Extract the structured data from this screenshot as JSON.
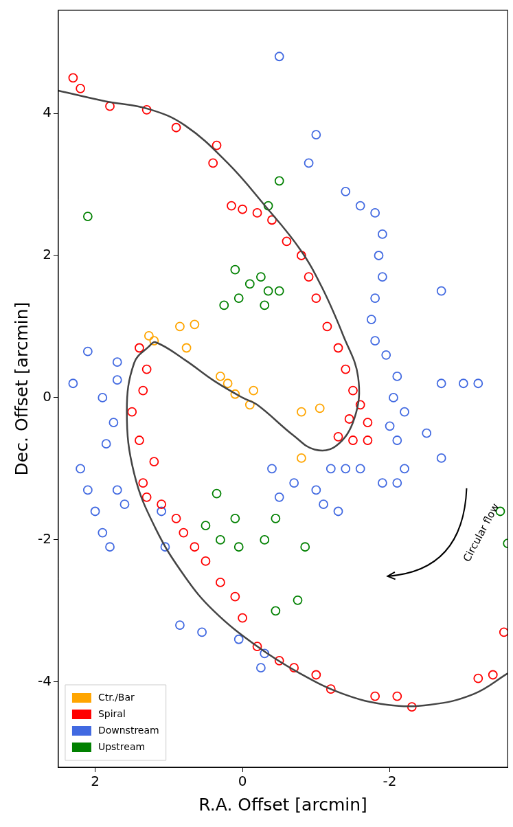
{
  "chart_data": {
    "type": "scatter",
    "xlabel": "R.A. Offset [arcmin]",
    "ylabel": "Dec. Offset [arcmin]",
    "xlim": [
      2.5,
      -3.6
    ],
    "ylim": [
      -5.2,
      5.45
    ],
    "xticks": [
      2,
      0,
      -2
    ],
    "yticks": [
      -4,
      -2,
      0,
      2,
      4
    ],
    "grid": false,
    "legend": "lower left",
    "series": [
      {
        "type": "line",
        "color": "#444444",
        "line_style": "solid",
        "x": [
          2.5,
          1.86,
          1.27,
          0.78,
          0.2,
          -0.29,
          -0.78,
          -1.08,
          -1.37,
          -1.57,
          -1.52,
          -1.27,
          -0.98,
          -0.69,
          -0.2,
          0,
          0.39,
          0.78,
          1.18,
          1.27,
          1.47,
          1.57,
          1.47,
          1.18,
          0.78,
          0.39,
          -0.2,
          -0.78,
          -1.37,
          -1.96,
          -2.55,
          -3.14,
          -3.6
        ],
        "y": [
          4.32,
          4.17,
          4.06,
          3.83,
          3.3,
          2.72,
          2.09,
          1.55,
          0.87,
          0.29,
          -0.29,
          -0.68,
          -0.73,
          -0.53,
          -0.1,
          0,
          0.24,
          0.53,
          0.78,
          0.72,
          0.49,
          -0.19,
          -1.07,
          -1.84,
          -2.52,
          -3.0,
          -3.5,
          -3.88,
          -4.17,
          -4.32,
          -4.32,
          -4.17,
          -3.88
        ]
      },
      {
        "name": "Ctr./Bar",
        "color": "#ffa500",
        "marker": "open_circle",
        "x": [
          0.1,
          0.3,
          -0.1,
          0.2,
          -0.15,
          1.2,
          0.85,
          0.65,
          1.27,
          0.76,
          -0.8,
          -1.05,
          -0.8
        ],
        "y": [
          0.05,
          0.3,
          -0.1,
          0.2,
          0.1,
          0.8,
          1.0,
          1.03,
          0.87,
          0.7,
          -0.2,
          -0.15,
          -0.85
        ]
      },
      {
        "name": "Spiral",
        "color": "#ff0000",
        "marker": "open_circle",
        "x": [
          2.3,
          2.2,
          1.8,
          1.3,
          0.9,
          0.35,
          0.4,
          0.15,
          0.0,
          -0.2,
          -0.4,
          -0.6,
          -0.8,
          -0.9,
          -1.0,
          -1.15,
          -1.3,
          -1.4,
          -1.5,
          -1.6,
          -1.45,
          -1.7,
          -1.3,
          -1.5,
          -1.7,
          1.4,
          1.3,
          1.35,
          1.5,
          1.4,
          1.2,
          1.35,
          1.3,
          1.1,
          0.9,
          0.8,
          0.65,
          0.5,
          0.3,
          0.1,
          0.0,
          -0.2,
          -0.5,
          -0.7,
          -1.0,
          -1.2,
          -1.8,
          -2.1,
          -2.3,
          -3.4,
          -3.55,
          -3.2
        ],
        "y": [
          4.5,
          4.35,
          4.1,
          4.05,
          3.8,
          3.55,
          3.3,
          2.7,
          2.65,
          2.6,
          2.5,
          2.2,
          2.0,
          1.7,
          1.4,
          1.0,
          0.7,
          0.4,
          0.1,
          -0.1,
          -0.3,
          -0.35,
          -0.55,
          -0.6,
          -0.6,
          0.7,
          0.4,
          0.1,
          -0.2,
          -0.6,
          -0.9,
          -1.2,
          -1.4,
          -1.5,
          -1.7,
          -1.9,
          -2.1,
          -2.3,
          -2.6,
          -2.8,
          -3.1,
          -3.5,
          -3.7,
          -3.8,
          -3.9,
          -4.1,
          -4.2,
          -4.2,
          -4.35,
          -3.9,
          -3.3,
          -3.95
        ]
      },
      {
        "name": "Downstream",
        "color": "#4169e1",
        "marker": "open_circle",
        "x": [
          -0.5,
          -1.0,
          -0.9,
          -1.4,
          -1.6,
          -1.8,
          -1.9,
          -1.85,
          -1.9,
          -1.8,
          -2.7,
          -1.75,
          -1.8,
          -1.95,
          -2.1,
          -2.05,
          -2.2,
          -2.0,
          -2.1,
          -2.5,
          -2.7,
          -3.0,
          -3.2,
          -2.7,
          -2.2,
          -1.9,
          -2.1,
          -1.6,
          -1.4,
          -1.2,
          -1.0,
          -1.1,
          -1.3,
          -0.7,
          -0.4,
          -0.5,
          2.3,
          2.1,
          1.7,
          1.7,
          1.9,
          1.75,
          1.85,
          2.2,
          2.1,
          2.0,
          1.9,
          1.8,
          1.7,
          1.6,
          1.1,
          1.05,
          0.85,
          0.55,
          0.05,
          -0.3,
          -0.25
        ],
        "y": [
          4.8,
          3.7,
          3.3,
          2.9,
          2.7,
          2.6,
          2.3,
          2.0,
          1.7,
          1.4,
          1.5,
          1.1,
          0.8,
          0.6,
          0.3,
          0.0,
          -0.2,
          -0.4,
          -0.6,
          -0.5,
          0.2,
          0.2,
          0.2,
          -0.85,
          -1.0,
          -1.2,
          -1.2,
          -1.0,
          -1.0,
          -1.0,
          -1.3,
          -1.5,
          -1.6,
          -1.2,
          -1.0,
          -1.4,
          0.2,
          0.65,
          0.25,
          0.5,
          0.0,
          -0.35,
          -0.65,
          -1.0,
          -1.3,
          -1.6,
          -1.9,
          -2.1,
          -1.3,
          -1.5,
          -1.6,
          -2.1,
          -3.2,
          -3.3,
          -3.4,
          -3.6,
          -3.8
        ]
      },
      {
        "name": "Upstream",
        "color": "#008000",
        "marker": "open_circle",
        "x": [
          2.1,
          -0.5,
          -0.35,
          0.1,
          0.05,
          -0.1,
          -0.25,
          -0.35,
          -0.5,
          -0.3,
          0.25,
          0.35,
          0.1,
          0.5,
          0.3,
          0.05,
          -0.3,
          -0.45,
          -0.85,
          -0.75,
          -0.45,
          -3.5,
          -3.6
        ],
        "y": [
          2.55,
          3.05,
          2.7,
          1.8,
          1.4,
          1.6,
          1.7,
          1.5,
          1.5,
          1.3,
          1.3,
          -1.35,
          -1.7,
          -1.8,
          -2.0,
          -2.1,
          -2.0,
          -1.7,
          -2.1,
          -2.85,
          -3.0,
          -1.6,
          -2.05
        ]
      }
    ],
    "annotations": [
      {
        "text": "Circular flow",
        "x": -2.95,
        "y": -2.0
      }
    ]
  }
}
